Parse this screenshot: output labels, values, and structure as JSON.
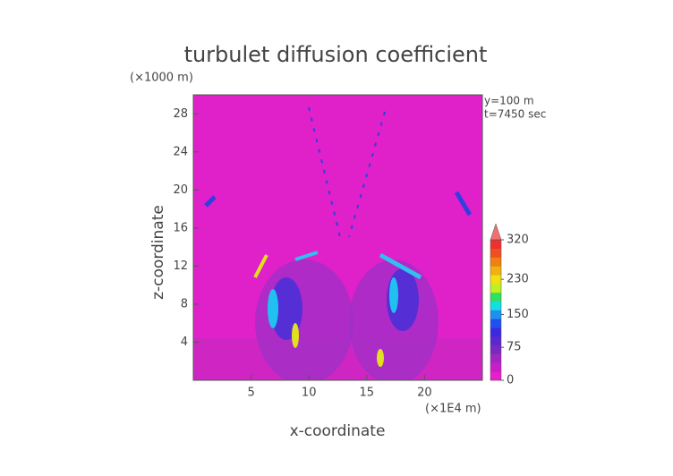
{
  "chart_data": {
    "type": "contour",
    "title": "turbulet diffusion coefficient",
    "y_unit": "(×1000 m)",
    "x_unit": "(×1E4 m)",
    "xlabel": "x-coordinate",
    "ylabel": "z-coordinate",
    "annotations": [
      "y=100 m",
      "t=7450 sec"
    ],
    "xlim": [
      0,
      25
    ],
    "xticks": [
      5,
      10,
      15,
      20
    ],
    "ylim": [
      0,
      30
    ],
    "yticks": [
      4,
      8,
      12,
      16,
      20,
      24,
      28
    ],
    "colorbar": {
      "clim": [
        0,
        320
      ],
      "ticks": [
        0,
        75,
        150,
        230,
        320
      ],
      "colors": [
        "#e81ec8",
        "#c81ec8",
        "#a028c0",
        "#7a28c0",
        "#5a28d0",
        "#3c28e0",
        "#2050f0",
        "#2090f0",
        "#10e0e0",
        "#30e060",
        "#c0f020",
        "#f0e010",
        "#f0b010",
        "#f08010",
        "#f05020",
        "#f03030"
      ],
      "extend_color": "#f07070"
    }
  }
}
